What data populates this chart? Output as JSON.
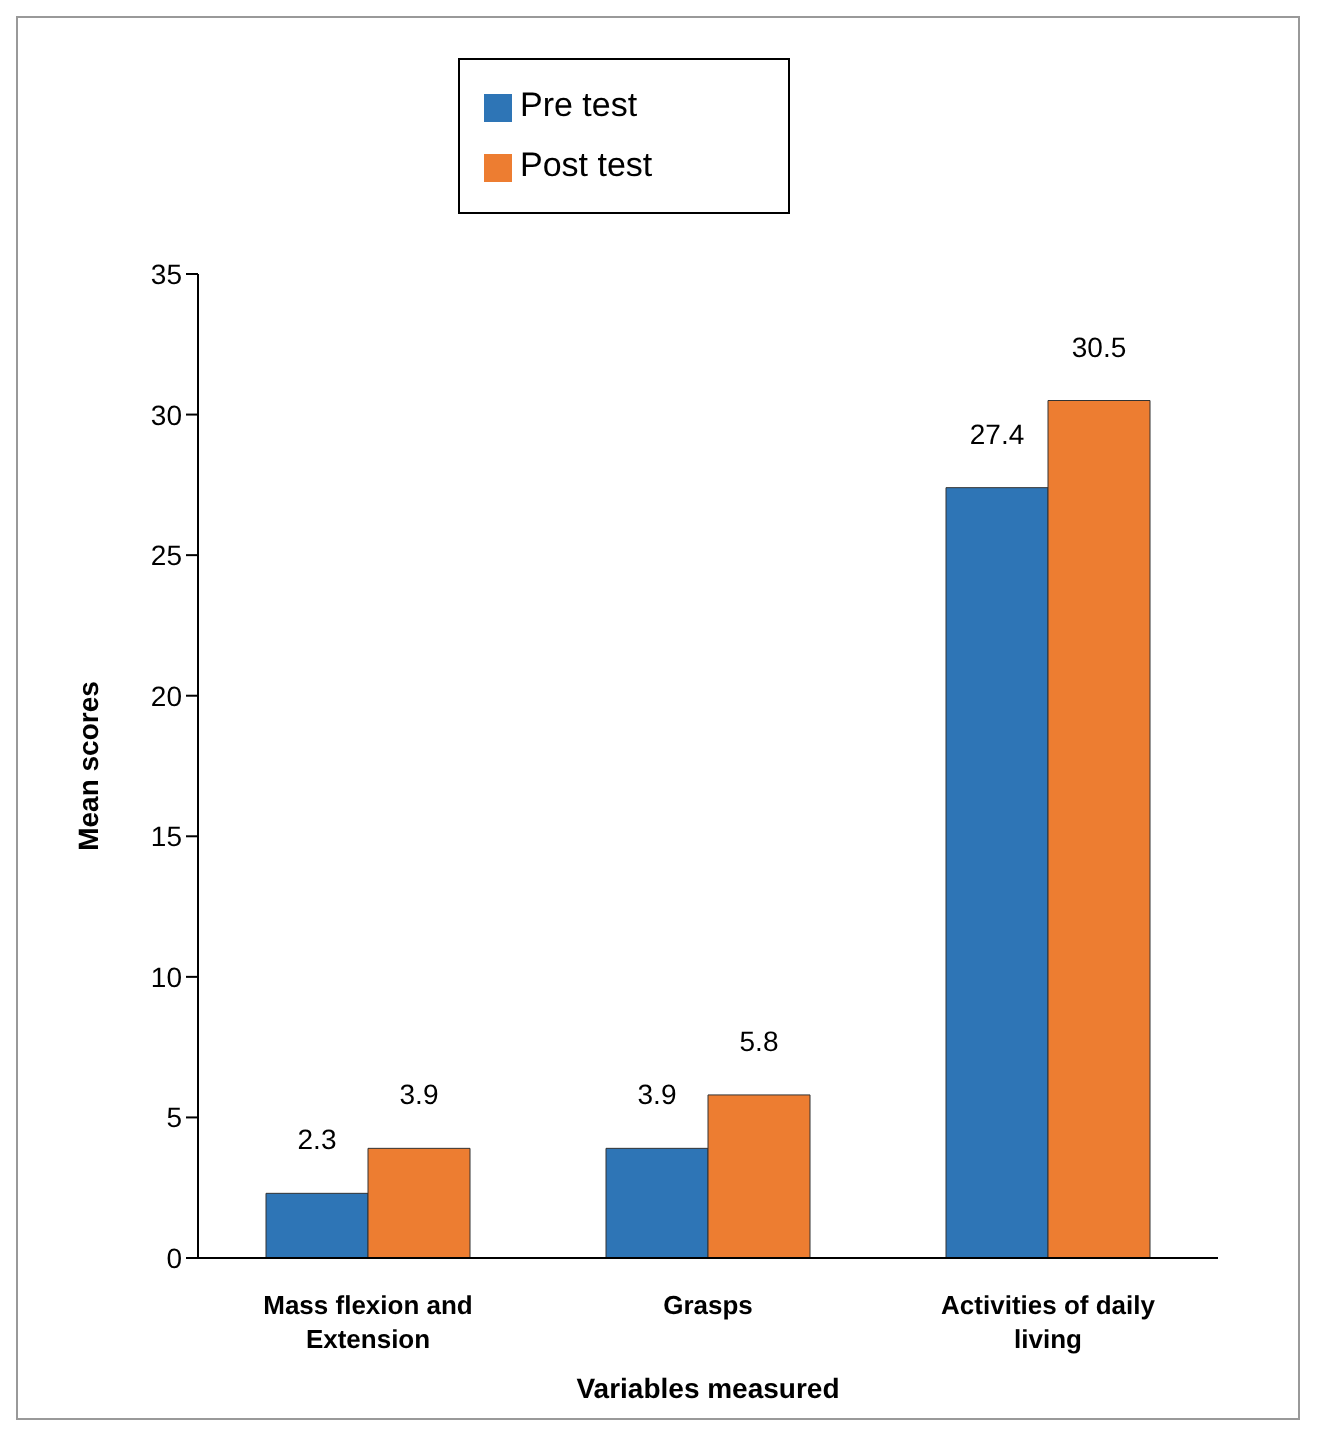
{
  "chart_data": {
    "type": "bar",
    "xlabel": "Variables measured",
    "ylabel": "Mean scores",
    "categories": [
      "Mass flexion and Extension",
      "Grasps",
      "Activities of daily living"
    ],
    "series": [
      {
        "name": "Pre test",
        "color": "#2e75b6",
        "values": [
          2.3,
          3.9,
          27.4
        ]
      },
      {
        "name": "Post test",
        "color": "#ed7d31",
        "values": [
          3.9,
          5.8,
          30.5
        ]
      }
    ],
    "ylim": [
      0,
      35
    ],
    "yticks": [
      0,
      5,
      10,
      15,
      20,
      25,
      30,
      35
    ],
    "grid": false,
    "legend": "top",
    "data_labels": true
  }
}
